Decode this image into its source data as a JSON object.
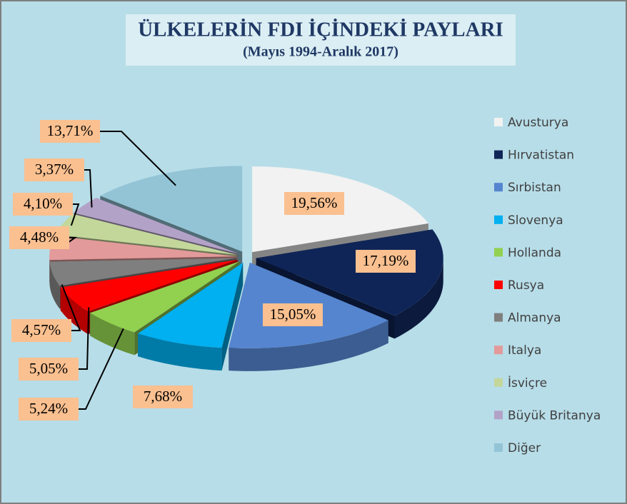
{
  "chart_data": {
    "type": "pie",
    "title": "ÜLKELERİN FDI İÇİNDEKİ PAYLARI",
    "subtitle": "(Mayıs 1994-Aralık 2017)",
    "categories": [
      "Avusturya",
      "Hırvatistan",
      "Sırbistan",
      "Slovenya",
      "Hollanda",
      "Rusya",
      "Almanya",
      "Italya",
      "İsviçre",
      "Büyük Britanya",
      "Diğer"
    ],
    "values": [
      19.56,
      17.19,
      15.05,
      7.68,
      5.24,
      5.05,
      4.57,
      4.48,
      4.1,
      3.37,
      13.71
    ],
    "value_labels": [
      "19,56%",
      "17,19%",
      "15,05%",
      "7,68%",
      "5,24%",
      "5,05%",
      "4,57%",
      "4,48%",
      "4,10%",
      "3,37%",
      "13,71%"
    ],
    "colors": [
      "#f2f2f2",
      "#0f2557",
      "#5585cf",
      "#00b0f0",
      "#92d050",
      "#ff0000",
      "#7f7f7f",
      "#e39a9a",
      "#c4d79b",
      "#b3a2c7",
      "#93c4d6"
    ],
    "legend": "right"
  }
}
